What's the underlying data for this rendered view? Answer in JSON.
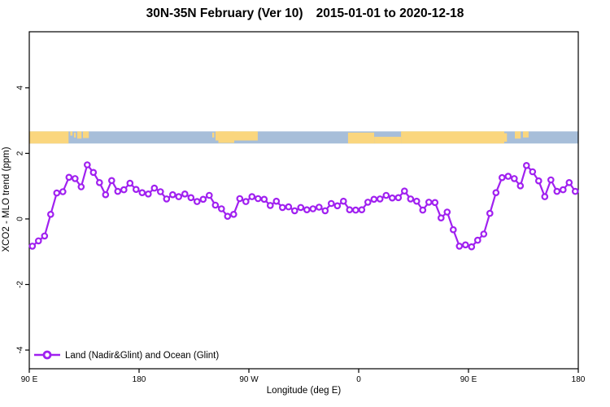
{
  "title": {
    "range_and_version": "30N-35N February (Ver 10)",
    "date_range": "2015-01-01 to 2020-12-18"
  },
  "chart_data": {
    "type": "line",
    "title": "30N-35N February (Ver 10)  2015-01-01 to 2020-12-18",
    "xlabel": "Longitude (deg E)",
    "ylabel": "XCO2 - MLO trend (ppm)",
    "xlim": [
      90,
      540
    ],
    "ylim": [
      -4.57,
      5.71
    ],
    "grid": false,
    "xticks": [
      {
        "pos": 90,
        "label": "90 E"
      },
      {
        "pos": 180,
        "label": "180"
      },
      {
        "pos": 270,
        "label": "90 W"
      },
      {
        "pos": 360,
        "label": "0"
      },
      {
        "pos": 450,
        "label": "90 E"
      },
      {
        "pos": 540,
        "label": "180"
      }
    ],
    "yticks": [
      {
        "pos": 4,
        "label": "4"
      },
      {
        "pos": 2,
        "label": "2"
      },
      {
        "pos": 0,
        "label": "0"
      },
      {
        "pos": -2,
        "label": "-2"
      },
      {
        "pos": -4,
        "label": "-4"
      }
    ],
    "legend": {
      "label": "Land (Nadir&Glint) and Ocean (Glint)",
      "position": "bottom-left"
    },
    "colors": {
      "series": "#A020F0",
      "land": "#FAD67E",
      "ocean": "#A7BED9",
      "text": "#000000"
    },
    "series": [
      {
        "name": "Land (Nadir&Glint) and Ocean (Glint)",
        "x": [
          92.5,
          97.5,
          102.5,
          107.5,
          112.5,
          117.5,
          122.5,
          127.5,
          132.5,
          137.5,
          142.5,
          147.5,
          152.5,
          157.5,
          162.5,
          167.5,
          172.5,
          177.5,
          182.5,
          187.5,
          192.5,
          197.5,
          202.5,
          207.5,
          212.5,
          217.5,
          222.5,
          227.5,
          232.5,
          237.5,
          242.5,
          247.5,
          252.5,
          257.5,
          262.5,
          267.5,
          272.5,
          277.5,
          282.5,
          287.5,
          292.5,
          297.5,
          302.5,
          307.5,
          312.5,
          317.5,
          322.5,
          327.5,
          332.5,
          337.5,
          342.5,
          347.5,
          352.5,
          357.5,
          362.5,
          367.5,
          372.5,
          377.5,
          382.5,
          387.5,
          392.5,
          397.5,
          402.5,
          407.5,
          412.5,
          417.5,
          422.5,
          427.5,
          432.5,
          437.5,
          442.5,
          447.5,
          452.5,
          457.5,
          462.5,
          467.5,
          472.5,
          477.5,
          482.5,
          487.5,
          492.5,
          497.5,
          502.5,
          507.5,
          512.5,
          517.5,
          522.5,
          527.5,
          532.5,
          537.5
        ],
        "values": [
          -0.83,
          -0.67,
          -0.52,
          0.14,
          0.79,
          0.83,
          1.27,
          1.23,
          0.98,
          1.65,
          1.42,
          1.11,
          0.74,
          1.17,
          0.84,
          0.89,
          1.09,
          0.9,
          0.8,
          0.76,
          0.94,
          0.83,
          0.61,
          0.74,
          0.68,
          0.76,
          0.65,
          0.53,
          0.6,
          0.72,
          0.42,
          0.31,
          0.08,
          0.14,
          0.62,
          0.53,
          0.68,
          0.62,
          0.6,
          0.41,
          0.54,
          0.35,
          0.37,
          0.25,
          0.35,
          0.28,
          0.31,
          0.36,
          0.25,
          0.47,
          0.4,
          0.54,
          0.28,
          0.27,
          0.28,
          0.51,
          0.6,
          0.61,
          0.72,
          0.64,
          0.65,
          0.85,
          0.61,
          0.54,
          0.27,
          0.51,
          0.5,
          0.03,
          0.21,
          -0.33,
          -0.83,
          -0.79,
          -0.85,
          -0.65,
          -0.46,
          0.17,
          0.8,
          1.26,
          1.3,
          1.23,
          1.01,
          1.63,
          1.44,
          1.16,
          0.68,
          1.19,
          0.84,
          0.89,
          1.11,
          0.84
        ]
      }
    ],
    "map_strip": {
      "description": "world coastline band for 30N-35N: land=yellow, ocean=blue",
      "value_top": 2.67,
      "value_bottom": 2.3,
      "land_segments": [
        {
          "x0": 90,
          "x1": 122.2,
          "t": 0,
          "b": 1
        },
        {
          "x0": 123.6,
          "x1": 125.4,
          "t": 0,
          "b": 0.35
        },
        {
          "x0": 126.6,
          "x1": 128.2,
          "t": 0.1,
          "b": 0.5
        },
        {
          "x0": 129.3,
          "x1": 132.8,
          "t": 0,
          "b": 0.6
        },
        {
          "x0": 134.0,
          "x1": 138.8,
          "t": 0,
          "b": 0.55
        },
        {
          "x0": 240.0,
          "x1": 241.6,
          "t": 0.1,
          "b": 0.5
        },
        {
          "x0": 242.7,
          "x1": 277.3,
          "t": 0,
          "b": 0.75
        },
        {
          "x0": 245.0,
          "x1": 258.0,
          "t": 0,
          "b": 0.95
        },
        {
          "x0": 351.3,
          "x1": 372.7,
          "t": 0.1,
          "b": 1
        },
        {
          "x0": 372.7,
          "x1": 394.7,
          "t": 0.45,
          "b": 1
        },
        {
          "x0": 394.7,
          "x1": 479.3,
          "t": 0,
          "b": 1
        },
        {
          "x0": 479.3,
          "x1": 481.5,
          "t": 0.15,
          "b": 0.85
        },
        {
          "x0": 488.0,
          "x1": 492.8,
          "t": 0,
          "b": 0.6
        },
        {
          "x0": 494.7,
          "x1": 499.3,
          "t": 0,
          "b": 0.5
        }
      ]
    }
  }
}
